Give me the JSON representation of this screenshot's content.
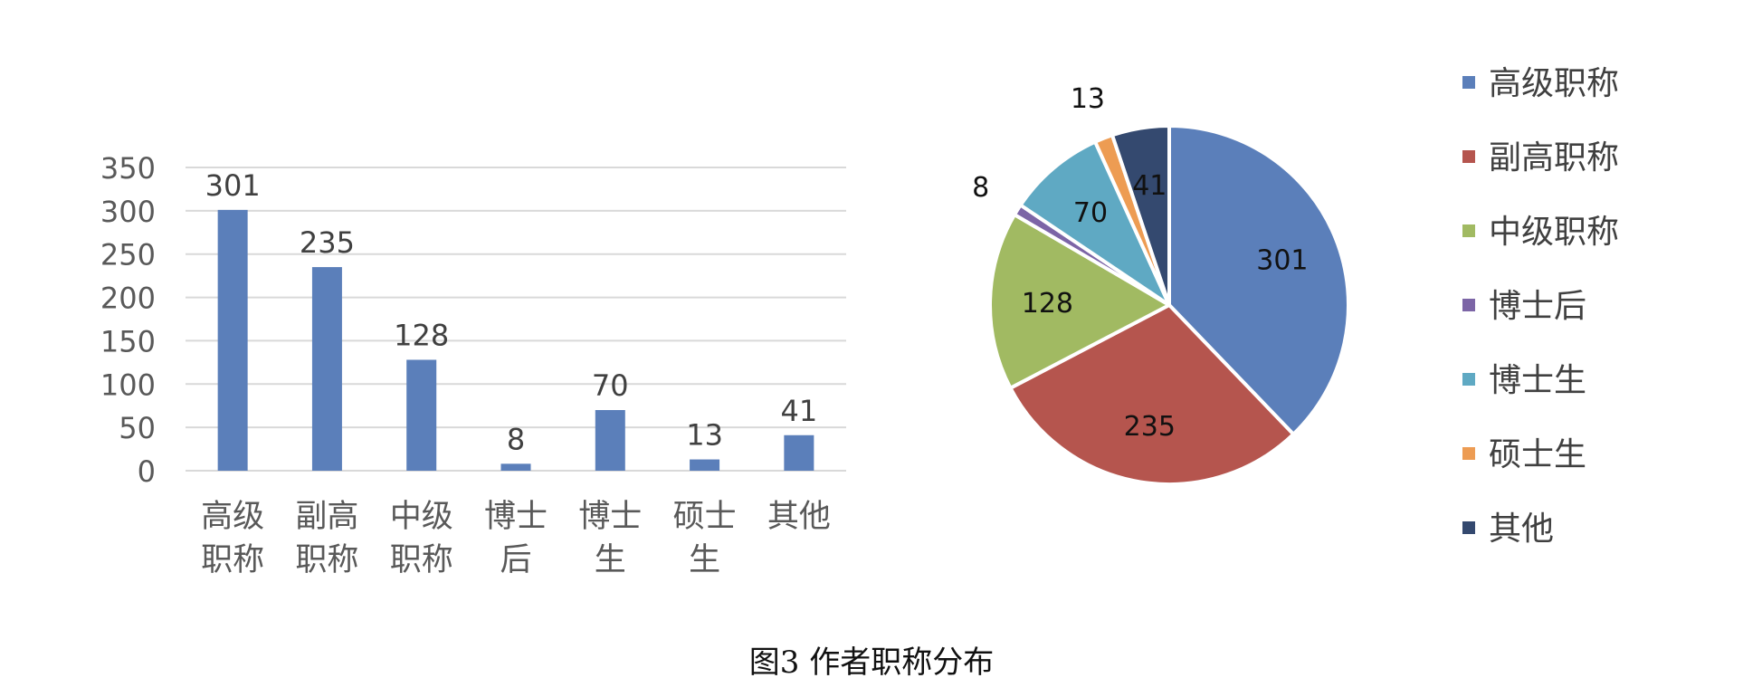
{
  "chart_data": [
    {
      "type": "bar",
      "categories": [
        "高级职称",
        "副高职称",
        "中级职称",
        "博士后",
        "博士生",
        "硕士生",
        "其他"
      ],
      "category_label_lines": [
        [
          "高级",
          "职称"
        ],
        [
          "副高",
          "职称"
        ],
        [
          "中级",
          "职称"
        ],
        [
          "博士",
          "后"
        ],
        [
          "博士",
          "生"
        ],
        [
          "硕士",
          "生"
        ],
        [
          "其他"
        ]
      ],
      "values": [
        301,
        235,
        128,
        8,
        70,
        13,
        41
      ],
      "ylim": [
        0,
        350
      ],
      "yticks": [
        "0",
        "50",
        "100",
        "150",
        "200",
        "250",
        "300",
        "350"
      ],
      "grid": true,
      "color": "#5B7FBA"
    },
    {
      "type": "pie",
      "labels": [
        "高级职称",
        "副高职称",
        "中级职称",
        "博士后",
        "博士生",
        "硕士生",
        "其他"
      ],
      "values": [
        301,
        235,
        128,
        8,
        70,
        13,
        41
      ],
      "colors": [
        "#5B7FBA",
        "#B5554E",
        "#A1BA62",
        "#7C65A6",
        "#5FA9C3",
        "#ED9C53",
        "#34496F"
      ],
      "legend_position": "right"
    }
  ],
  "caption": "图3  作者职称分布"
}
